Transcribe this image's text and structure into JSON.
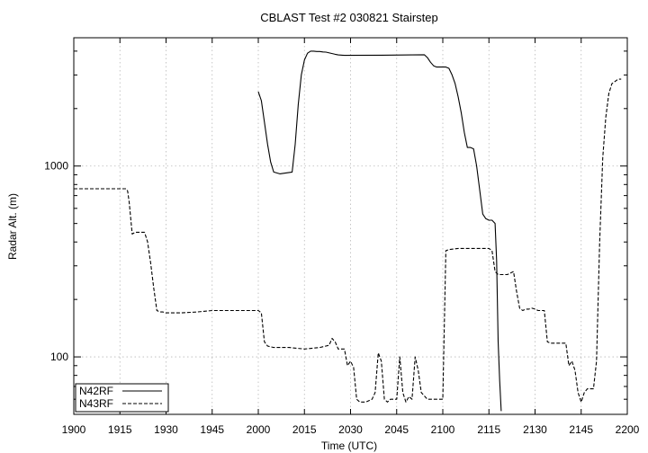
{
  "chart_data": {
    "type": "line",
    "title": "CBLAST Test #2 030821 Stairstep",
    "xlabel": "Time (UTC)",
    "ylabel": "Radar Alt. (m)",
    "x_ticks": [
      "1900",
      "1915",
      "1930",
      "1945",
      "2000",
      "2015",
      "2030",
      "2045",
      "2100",
      "2115",
      "2130",
      "2145",
      "2200"
    ],
    "y_ticks": [
      {
        "value": 100,
        "label": "100"
      },
      {
        "value": 1000,
        "label": "1000"
      }
    ],
    "yscale": "log",
    "ylim": [
      50,
      4700
    ],
    "grid": true,
    "legend_position": "bottom-left",
    "series": [
      {
        "name": "N42RF",
        "style": "solid",
        "x": [
          "2000",
          "2001",
          "2002",
          "2003",
          "2004",
          "2005",
          "2006",
          "2007",
          "2008",
          "2010",
          "2011",
          "2012",
          "2013",
          "2014",
          "2015",
          "2016",
          "2017",
          "2018",
          "2019",
          "2020",
          "2021",
          "2022",
          "2025",
          "2026",
          "2028",
          "2040",
          "2050",
          "2054",
          "2055",
          "2056",
          "2057",
          "2058",
          "2100",
          "2101",
          "2102",
          "2103",
          "2104",
          "2105",
          "2106",
          "2107",
          "2108",
          "2109",
          "2110",
          "2111",
          "2112",
          "2113",
          "2114",
          "2115",
          "2116",
          "2117",
          "2117.5",
          "2118",
          "2118.5",
          "2119"
        ],
        "y": [
          2450,
          2200,
          1700,
          1300,
          1050,
          930,
          920,
          910,
          915,
          925,
          930,
          1300,
          2100,
          3000,
          3600,
          3900,
          4000,
          4000,
          3980,
          3980,
          3960,
          3950,
          3850,
          3820,
          3800,
          3810,
          3820,
          3830,
          3700,
          3500,
          3350,
          3300,
          3300,
          3300,
          3250,
          3000,
          2700,
          2300,
          1900,
          1500,
          1250,
          1250,
          1230,
          1000,
          750,
          560,
          530,
          520,
          520,
          500,
          320,
          120,
          75,
          52
        ]
      },
      {
        "name": "N43RF",
        "style": "dashed",
        "x": [
          "1900",
          "1917",
          "1917.5",
          "1918",
          "1919",
          "1920",
          "1921",
          "1922",
          "1923",
          "1924",
          "1925",
          "1926",
          "1927",
          "1928",
          "1929",
          "1930",
          "1935",
          "1940",
          "1945",
          "1950",
          "1955",
          "2000",
          "2001",
          "2002",
          "2003",
          "2004",
          "2005",
          "2010",
          "2015",
          "2020",
          "2023",
          "2024",
          "2025",
          "2026",
          "2027",
          "2028",
          "2029",
          "2030",
          "2031",
          "2032",
          "2033",
          "2035",
          "2037",
          "2038",
          "2039",
          "2040",
          "2041",
          "2042",
          "2043",
          "2044",
          "2045",
          "2046",
          "2047",
          "2048",
          "2049",
          "2050",
          "2051",
          "2052",
          "2053",
          "2055",
          "2100",
          "2101",
          "2102",
          "2105",
          "2110",
          "2115",
          "2116",
          "2117",
          "2118",
          "2119",
          "2120",
          "2121",
          "2123",
          "2124",
          "2125",
          "2126",
          "2127",
          "2128",
          "2129",
          "2130",
          "2131",
          "2133",
          "2134",
          "2135",
          "2136",
          "2140",
          "2141",
          "2142",
          "2143",
          "2144",
          "2145",
          "2146",
          "2147",
          "2148",
          "2149",
          "2150",
          "2151",
          "2152",
          "2153",
          "2154",
          "2155",
          "2157",
          "2158"
        ],
        "y": [
          760,
          760,
          740,
          650,
          440,
          450,
          450,
          450,
          450,
          400,
          310,
          230,
          175,
          172,
          172,
          170,
          170,
          172,
          175,
          175,
          175,
          175,
          170,
          120,
          114,
          113,
          112,
          112,
          110,
          112,
          115,
          125,
          120,
          110,
          110,
          110,
          90,
          95,
          88,
          60,
          58,
          58,
          60,
          65,
          105,
          95,
          60,
          58,
          60,
          60,
          60,
          100,
          65,
          58,
          62,
          60,
          100,
          85,
          65,
          60,
          60,
          360,
          365,
          370,
          370,
          370,
          360,
          280,
          270,
          270,
          270,
          270,
          280,
          220,
          180,
          175,
          178,
          178,
          180,
          178,
          175,
          175,
          120,
          118,
          118,
          118,
          90,
          95,
          85,
          65,
          58,
          65,
          68,
          68,
          68,
          95,
          400,
          1100,
          1800,
          2400,
          2700,
          2850,
          2850
        ]
      }
    ]
  }
}
